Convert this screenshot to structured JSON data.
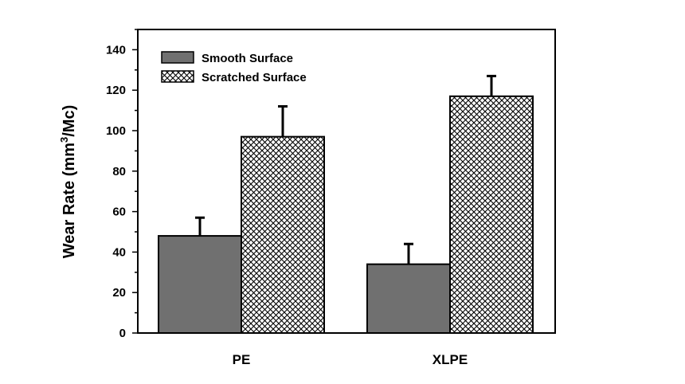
{
  "chart_data": {
    "type": "bar",
    "categories": [
      "PE",
      "XLPE"
    ],
    "series": [
      {
        "name": "Smooth Surface",
        "values": [
          48,
          34
        ],
        "errors": [
          9,
          10
        ],
        "color": "#707070",
        "pattern": "solid"
      },
      {
        "name": "Scratched Surface",
        "values": [
          97,
          117
        ],
        "errors": [
          15,
          10
        ],
        "color": "#ffffff",
        "pattern": "crosshatch"
      }
    ],
    "ylabel_main": "Wear Rate (mm",
    "ylabel_sup": "3",
    "ylabel_tail": "/Mc)",
    "ylim": [
      0,
      150
    ],
    "yticks": [
      0,
      20,
      40,
      60,
      80,
      100,
      120,
      140
    ],
    "legend_position": "top-left",
    "grid": false
  }
}
